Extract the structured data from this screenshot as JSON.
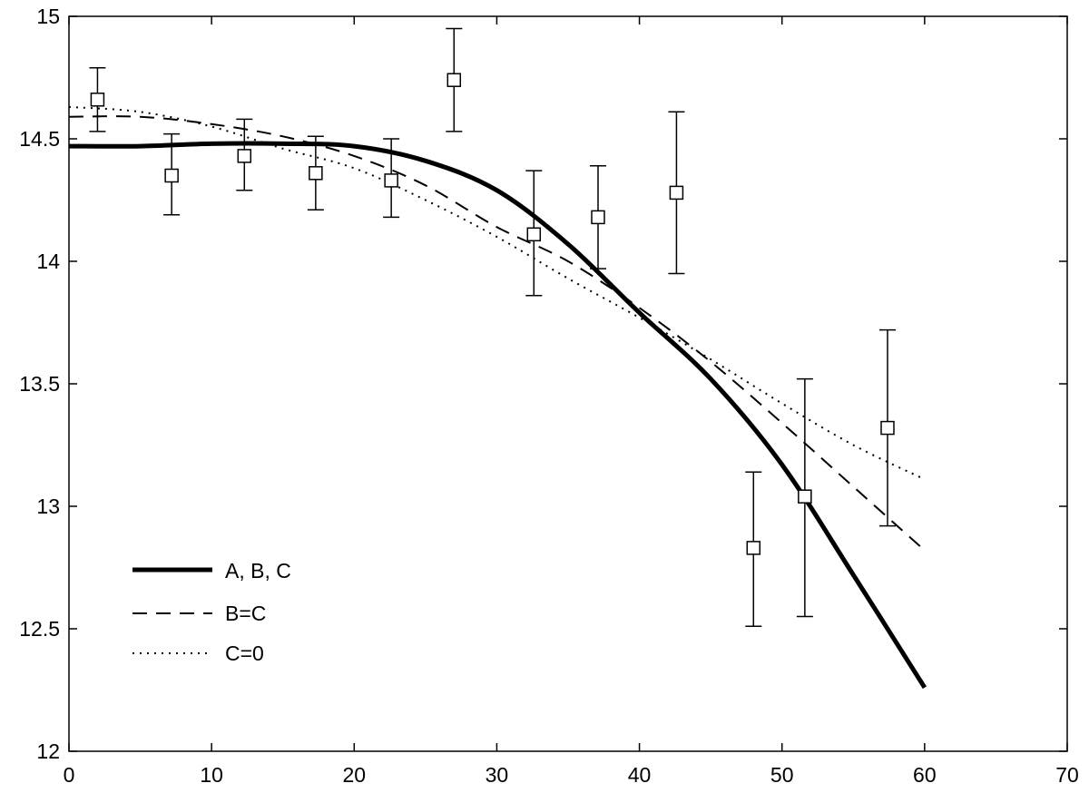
{
  "chart_data": {
    "type": "line",
    "xlim": [
      0,
      70
    ],
    "ylim": [
      12,
      15
    ],
    "xticks": [
      "0",
      "10",
      "20",
      "30",
      "40",
      "50",
      "60",
      "70"
    ],
    "yticks": [
      "12",
      "12.5",
      "13",
      "13.5",
      "14",
      "14.5",
      "15"
    ],
    "grid": false,
    "legend_position": "bottom-left",
    "series": [
      {
        "name": "A, B, C",
        "style": "solid",
        "x": [
          0,
          5,
          10,
          15,
          20,
          25,
          30,
          35,
          40,
          45,
          50,
          55,
          60
        ],
        "y": [
          14.47,
          14.47,
          14.48,
          14.48,
          14.47,
          14.41,
          14.29,
          14.07,
          13.79,
          13.52,
          13.17,
          12.72,
          12.26
        ]
      },
      {
        "name": "B=C",
        "style": "dashed",
        "x": [
          0,
          5,
          10,
          15,
          20,
          25,
          30,
          35,
          40,
          45,
          50,
          55,
          60
        ],
        "y": [
          14.59,
          14.59,
          14.56,
          14.51,
          14.43,
          14.31,
          14.14,
          14.0,
          13.81,
          13.59,
          13.34,
          13.08,
          12.82
        ]
      },
      {
        "name": "C=0",
        "style": "dotted",
        "x": [
          0,
          5,
          10,
          15,
          20,
          25,
          30,
          35,
          40,
          45,
          50,
          55,
          60
        ],
        "y": [
          14.63,
          14.61,
          14.55,
          14.46,
          14.38,
          14.25,
          14.1,
          13.93,
          13.77,
          13.6,
          13.42,
          13.25,
          13.11
        ]
      }
    ],
    "data_points": {
      "marker": "square",
      "x": [
        2,
        7.2,
        12.3,
        17.3,
        22.6,
        27,
        32.6,
        37.1,
        42.6,
        48,
        51.6,
        57.4
      ],
      "y": [
        14.66,
        14.35,
        14.43,
        14.36,
        14.33,
        14.74,
        14.11,
        14.18,
        14.28,
        12.83,
        13.04,
        13.32
      ],
      "err_low": [
        14.53,
        14.19,
        14.29,
        14.21,
        14.18,
        14.53,
        13.86,
        13.97,
        13.95,
        12.51,
        12.55,
        12.92
      ],
      "err_high": [
        14.79,
        14.52,
        14.58,
        14.51,
        14.5,
        14.95,
        14.37,
        14.39,
        14.61,
        13.14,
        13.52,
        13.72
      ]
    }
  }
}
